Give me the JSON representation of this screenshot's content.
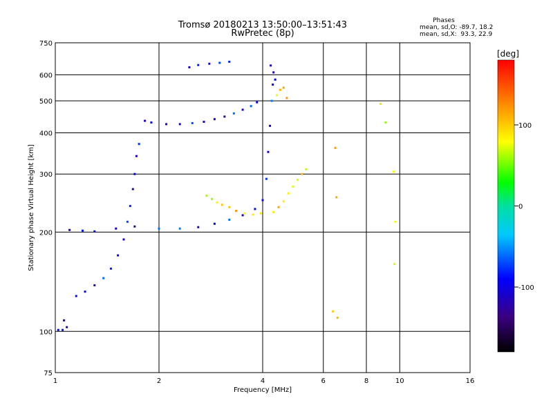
{
  "chart_data": {
    "type": "scatter",
    "title": "Tromsø 20180213 13:50:00–13:51:43",
    "subtitle": "RwPretec (8p)",
    "xlabel": "Frequency [MHz]",
    "ylabel": "Stationary phase Virtual Height [km]",
    "x_scale": "log",
    "y_scale": "log",
    "xlim": [
      1,
      16
    ],
    "ylim": [
      75,
      750
    ],
    "x_ticks": [
      1,
      2,
      4,
      6,
      8,
      10,
      16
    ],
    "y_ticks": [
      75,
      100,
      200,
      300,
      400,
      500,
      600,
      750
    ],
    "grid": true,
    "legend": {
      "title": "Phases",
      "line1": "mean, sd,O: -89.7, 18.2",
      "line2": "mean, sd,X:  93.3, 22.9"
    },
    "colorbar": {
      "label": "[deg]",
      "range": [
        -180,
        180
      ],
      "ticks": [
        100,
        0,
        -100
      ],
      "colormap": "rainbow",
      "top_color": "#ff0000",
      "bottom_color": "#000000"
    },
    "series": [
      {
        "name": "O",
        "color_value": -90,
        "points": [
          [
            1.02,
            101
          ],
          [
            1.05,
            101
          ],
          [
            1.08,
            103
          ],
          [
            1.06,
            108
          ],
          [
            1.15,
            128
          ],
          [
            1.22,
            132
          ],
          [
            1.3,
            138
          ],
          [
            1.38,
            145
          ],
          [
            1.45,
            155
          ],
          [
            1.52,
            170
          ],
          [
            1.58,
            190
          ],
          [
            1.62,
            215
          ],
          [
            1.65,
            240
          ],
          [
            1.68,
            270
          ],
          [
            1.7,
            300
          ],
          [
            1.72,
            340
          ],
          [
            1.75,
            370
          ],
          [
            1.1,
            203
          ],
          [
            1.2,
            202
          ],
          [
            1.3,
            201
          ],
          [
            1.5,
            205
          ],
          [
            1.7,
            208
          ],
          [
            2.0,
            205
          ],
          [
            2.3,
            205
          ],
          [
            2.6,
            207
          ],
          [
            2.9,
            212
          ],
          [
            3.2,
            218
          ],
          [
            3.5,
            225
          ],
          [
            3.8,
            235
          ],
          [
            4.0,
            250
          ],
          [
            4.1,
            290
          ],
          [
            4.15,
            350
          ],
          [
            4.2,
            420
          ],
          [
            4.25,
            500
          ],
          [
            4.28,
            560
          ],
          [
            1.82,
            435
          ],
          [
            1.9,
            430
          ],
          [
            2.1,
            425
          ],
          [
            2.3,
            425
          ],
          [
            2.5,
            428
          ],
          [
            2.7,
            432
          ],
          [
            2.9,
            440
          ],
          [
            3.1,
            448
          ],
          [
            3.3,
            458
          ],
          [
            3.5,
            470
          ],
          [
            3.7,
            482
          ],
          [
            3.85,
            495
          ],
          [
            2.45,
            632
          ],
          [
            2.6,
            642
          ],
          [
            2.8,
            648
          ],
          [
            3.0,
            652
          ],
          [
            3.2,
            657
          ],
          [
            4.22,
            640
          ],
          [
            4.3,
            610
          ],
          [
            4.35,
            580
          ]
        ]
      },
      {
        "name": "X",
        "color_value": 90,
        "points": [
          [
            2.75,
            258
          ],
          [
            2.85,
            252
          ],
          [
            2.95,
            246
          ],
          [
            3.05,
            242
          ],
          [
            3.2,
            238
          ],
          [
            3.35,
            232
          ],
          [
            3.55,
            228
          ],
          [
            3.75,
            226
          ],
          [
            3.95,
            228
          ],
          [
            4.3,
            230
          ],
          [
            4.45,
            238
          ],
          [
            4.6,
            248
          ],
          [
            4.75,
            262
          ],
          [
            4.9,
            275
          ],
          [
            5.05,
            288
          ],
          [
            5.2,
            300
          ],
          [
            5.35,
            310
          ],
          [
            4.4,
            520
          ],
          [
            4.5,
            540
          ],
          [
            4.6,
            548
          ],
          [
            4.7,
            510
          ],
          [
            6.5,
            360
          ],
          [
            6.55,
            255
          ],
          [
            6.6,
            110
          ],
          [
            6.4,
            115
          ],
          [
            8.8,
            490
          ],
          [
            9.1,
            430
          ],
          [
            9.6,
            305
          ],
          [
            9.7,
            215
          ],
          [
            9.65,
            160
          ]
        ]
      }
    ]
  }
}
